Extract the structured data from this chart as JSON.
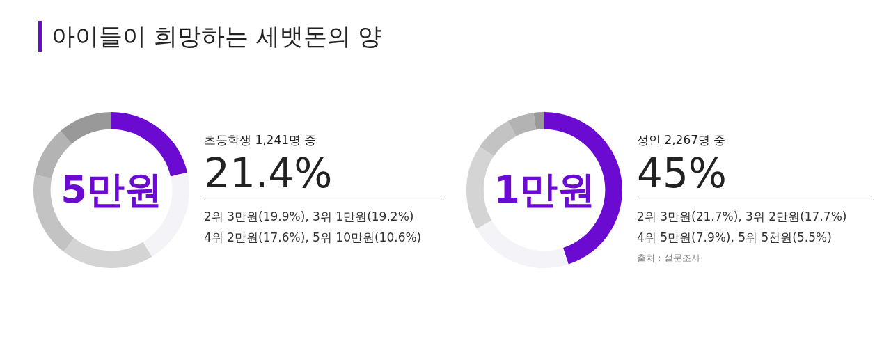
{
  "chart_data": [
    {
      "type": "donut",
      "title": "아이들이 희망하는 세뱃돈의 양",
      "subtitle": "초등학생 1,241명 중",
      "categories": [
        "5만원",
        null,
        null,
        null,
        null,
        null
      ],
      "values": [
        21.4,
        19.9,
        19.2,
        17.6,
        10.6,
        11.3
      ],
      "colors": [
        "#6b0ad0",
        "#f3f3f8",
        "#d4d4d4",
        "#c3c3c3",
        "#b3b3b3",
        "#999999"
      ],
      "value_labels": [
        "21.4%",
        null,
        null,
        null,
        null,
        null
      ],
      "annotations": [
        "2위 3만원(19.9%), 3위 1만원(19.2%)",
        "4위 2만원(17.6%), 5위 10만원(10.6%)"
      ]
    },
    {
      "type": "donut",
      "subtitle": "성인 2,267명 중",
      "categories": [
        "1만원",
        null,
        null,
        null,
        null,
        null
      ],
      "values": [
        45,
        21.7,
        17.7,
        7.9,
        5.5,
        2.2
      ],
      "colors": [
        "#6b0ad0",
        "#f3f3f8",
        "#d4d4d4",
        "#c3c3c3",
        "#b3b3b3",
        "#999999"
      ],
      "value_labels": [
        "45%",
        null,
        null,
        null,
        null,
        null
      ],
      "annotations": [
        "2위 3만원(21.7%), 3위 2만원(17.7%)",
        "4위 5만원(7.9%), 5위 5천원(5.5%)",
        "출처 : 설문조사"
      ]
    }
  ]
}
